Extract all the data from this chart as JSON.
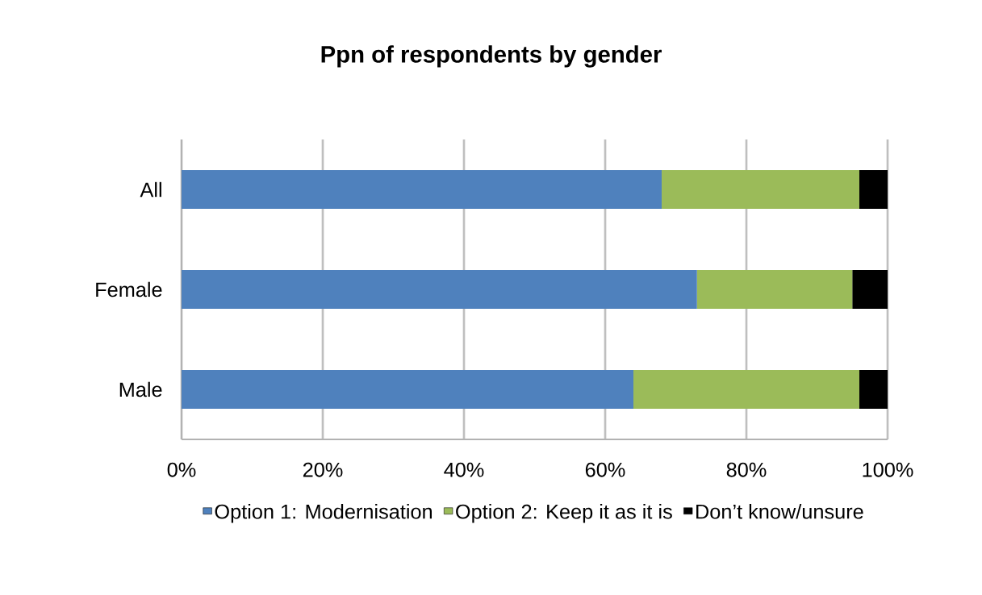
{
  "chart_data": {
    "type": "bar",
    "orientation": "horizontal",
    "stacked": true,
    "title": "**Ppn of respondents by gender**",
    "categories": [
      "All",
      "Female",
      "Male"
    ],
    "series": [
      {
        "name": "Option 1:  Modernisation",
        "color": "#4f81bd",
        "values": [
          68,
          73,
          64
        ]
      },
      {
        "name": "Option 2:  Keep it as it is",
        "color": "#9bbb59",
        "values": [
          28,
          22,
          32
        ]
      },
      {
        "name": "Don’t know/unsure",
        "color": "#000000",
        "values": [
          4,
          5,
          4
        ]
      }
    ],
    "xlim": [
      0,
      100
    ],
    "xticks": [
      {
        "value": 0,
        "label": "0%"
      },
      {
        "value": 20,
        "label": "20%"
      },
      {
        "value": 40,
        "label": "40%"
      },
      {
        "value": 60,
        "label": "60%"
      },
      {
        "value": 80,
        "label": "80%"
      },
      {
        "value": 100,
        "label": "100%"
      }
    ],
    "grid": "x",
    "legend": "bottom"
  }
}
